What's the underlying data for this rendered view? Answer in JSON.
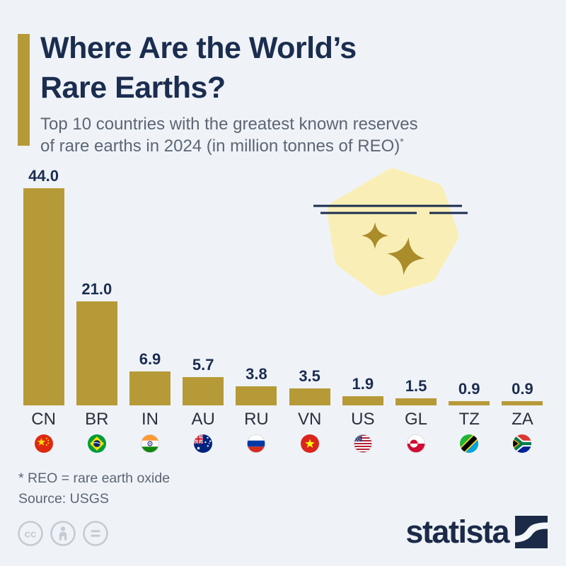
{
  "header": {
    "title_line1": "Where Are the World’s",
    "title_line2": "Rare Earths?",
    "subtitle_line1": "Top 10 countries with the greatest known reserves",
    "subtitle_line2": "of rare earths in 2024 (in million tonnes of REO)",
    "footnote_marker": "*"
  },
  "chart_data": {
    "type": "bar",
    "title": "Where Are the World’s Rare Earths?",
    "subtitle": "Top 10 countries with the greatest known reserves of rare earths in 2024 (in million tonnes of REO)*",
    "categories": [
      "CN",
      "BR",
      "IN",
      "AU",
      "RU",
      "VN",
      "US",
      "GL",
      "TZ",
      "ZA"
    ],
    "values": [
      44.0,
      21.0,
      6.9,
      5.7,
      3.8,
      3.5,
      1.9,
      1.5,
      0.9,
      0.9
    ],
    "value_labels": [
      "44.0",
      "21.0",
      "6.9",
      "5.7",
      "3.8",
      "3.5",
      "1.9",
      "1.5",
      "0.9",
      "0.9"
    ],
    "flag_icons": [
      "flag-cn-icon",
      "flag-br-icon",
      "flag-in-icon",
      "flag-au-icon",
      "flag-ru-icon",
      "flag-vn-icon",
      "flag-us-icon",
      "flag-gl-icon",
      "flag-tz-icon",
      "flag-za-icon"
    ],
    "unit": "million tonnes of REO",
    "ylim": [
      0,
      44
    ],
    "grid": false,
    "legend": false,
    "bar_color": "#b79a38",
    "value_label_color": "#1b2d4f"
  },
  "footer": {
    "footnote": "* REO = rare earth oxide",
    "source": "Source: USGS",
    "license_icons": [
      "cc-icon",
      "attribution-icon",
      "no-derivatives-icon"
    ],
    "brand": "statista"
  },
  "colors": {
    "background": "#eff3f8",
    "accent_gold": "#b79a38",
    "title_navy": "#1b2d4f",
    "subtitle_gray": "#5c6673",
    "blob_yellow": "#f9efb6",
    "sparkle_gold": "#ab8c2b",
    "decoration_line_navy": "#1b2d4f",
    "license_gray": "#c3cbd4"
  }
}
